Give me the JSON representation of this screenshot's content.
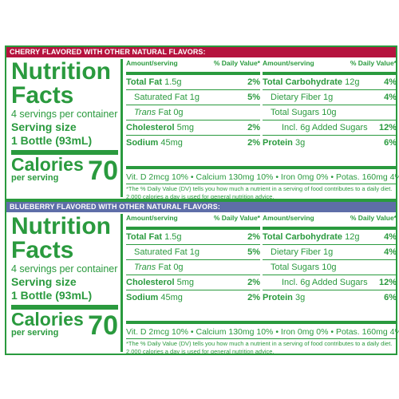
{
  "panels": [
    {
      "header": "CHERRY FLAVORED WITH OTHER NATURAL FLAVORS:",
      "header_color": "#b5133e",
      "title": "Nutrition Facts",
      "servings": "4 servings per container",
      "serving_size_label": "Serving size",
      "serving_size_value": "1 Bottle (93mL)",
      "calories_label": "Calories",
      "calories_sub": "per serving",
      "calories_value": "70",
      "col_a_head": {
        "left": "Amount/serving",
        "right": "% Daily Value*"
      },
      "col_b_head": {
        "left": "Amount/serving",
        "right": "% Daily Value*"
      },
      "col_a": [
        {
          "bold": "Total Fat",
          "rest": " 1.5g",
          "dv": "2%"
        },
        {
          "bold": "",
          "rest": "Saturated Fat 1g",
          "dv": "5%"
        },
        {
          "italic": "Trans",
          "rest": " Fat 0g",
          "dv": ""
        },
        {
          "bold": "Cholesterol",
          "rest": " 5mg",
          "dv": "2%"
        },
        {
          "bold": "Sodium",
          "rest": " 45mg",
          "dv": "2%"
        }
      ],
      "col_b": [
        {
          "bold": "Total Carbohydrate",
          "rest": " 12g",
          "dv": "4%"
        },
        {
          "bold": "",
          "rest": "Dietary Fiber 1g",
          "dv": "4%"
        },
        {
          "bold": "",
          "rest": "Total Sugars 10g",
          "dv": ""
        },
        {
          "bold": "",
          "rest": "Incl. 6g Added Sugars",
          "dv": "12%"
        },
        {
          "bold": "Protein",
          "rest": " 3g",
          "dv": "6%"
        }
      ],
      "vitamins": "Vit. D 2mcg 10% • Calcium 130mg 10% • Iron 0mg 0% • Potas. 160mg 4%",
      "footnote": "*The % Daily Value (DV) tells you how much a nutrient in a serving of food contributes to a daily diet. 2,000 calories a day is used for general nutrition advice."
    },
    {
      "header": "BLUEBERRY FLAVORED WITH OTHER NATURAL FLAVORS:",
      "header_color": "#5e6ea8",
      "title": "Nutrition Facts",
      "servings": "4 servings per container",
      "serving_size_label": "Serving size",
      "serving_size_value": "1 Bottle (93mL)",
      "calories_label": "Calories",
      "calories_sub": "per serving",
      "calories_value": "70",
      "col_a_head": {
        "left": "Amount/serving",
        "right": "% Daily Value*"
      },
      "col_b_head": {
        "left": "Amount/serving",
        "right": "% Daily Value*"
      },
      "col_a": [
        {
          "bold": "Total Fat",
          "rest": " 1.5g",
          "dv": "2%"
        },
        {
          "bold": "",
          "rest": "Saturated Fat 1g",
          "dv": "5%"
        },
        {
          "italic": "Trans",
          "rest": " Fat 0g",
          "dv": ""
        },
        {
          "bold": "Cholesterol",
          "rest": " 5mg",
          "dv": "2%"
        },
        {
          "bold": "Sodium",
          "rest": " 45mg",
          "dv": "2%"
        }
      ],
      "col_b": [
        {
          "bold": "Total Carbohydrate",
          "rest": " 12g",
          "dv": "4%"
        },
        {
          "bold": "",
          "rest": "Dietary Fiber 1g",
          "dv": "4%"
        },
        {
          "bold": "",
          "rest": "Total Sugars 10g",
          "dv": ""
        },
        {
          "bold": "",
          "rest": "Incl. 6g Added Sugars",
          "dv": "12%"
        },
        {
          "bold": "Protein",
          "rest": " 3g",
          "dv": "6%"
        }
      ],
      "vitamins": "Vit. D 2mcg 10% • Calcium 130mg 10% • Iron 0mg 0% • Potas. 160mg 4%",
      "footnote": "*The % Daily Value (DV) tells you how much a nutrient in a serving of food contributes to a daily diet. 2,000 calories a day is used for general nutrition advice."
    }
  ]
}
